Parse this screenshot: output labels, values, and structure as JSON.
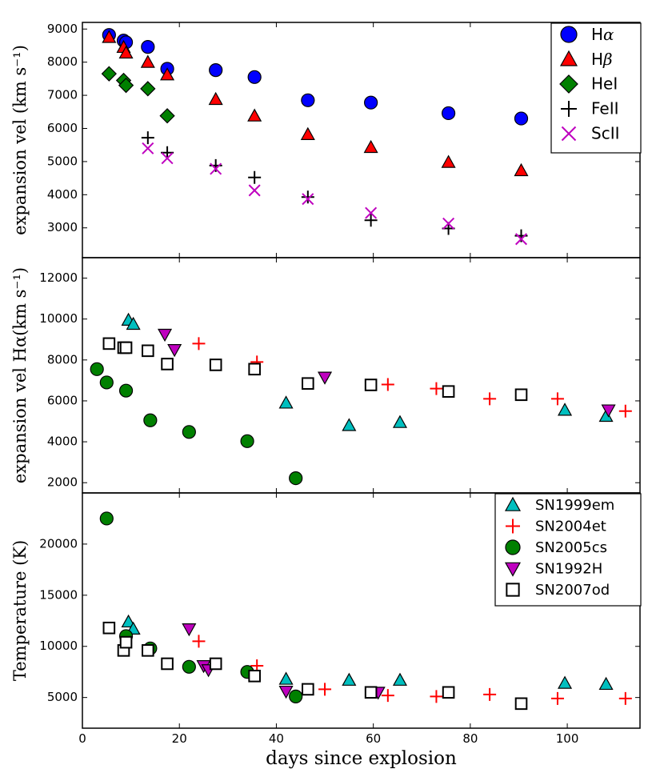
{
  "chart_data": [
    {
      "type": "scatter",
      "panel": "top",
      "xlim": [
        0,
        115
      ],
      "ylim": [
        2100,
        9200
      ],
      "ylabel": "expansion vel (km s⁻¹)",
      "yticks": [
        3000,
        4000,
        5000,
        6000,
        7000,
        8000,
        9000
      ],
      "legend_position": "top-right",
      "series": [
        {
          "name": "Hα",
          "marker": "circle",
          "color": "#0000ff",
          "points": [
            [
              5.5,
              8820
            ],
            [
              8.5,
              8650
            ],
            [
              9.0,
              8600
            ],
            [
              13.5,
              8460
            ],
            [
              17.5,
              7800
            ],
            [
              27.5,
              7760
            ],
            [
              35.5,
              7550
            ],
            [
              46.5,
              6850
            ],
            [
              59.5,
              6780
            ],
            [
              75.5,
              6460
            ],
            [
              90.5,
              6300
            ]
          ]
        },
        {
          "name": "Hβ",
          "marker": "triangle-up",
          "color": "#ff0000",
          "points": [
            [
              5.5,
              8750
            ],
            [
              8.5,
              8450
            ],
            [
              9.0,
              8280
            ],
            [
              13.5,
              8000
            ],
            [
              17.5,
              7620
            ],
            [
              27.5,
              6880
            ],
            [
              35.5,
              6380
            ],
            [
              46.5,
              5820
            ],
            [
              59.5,
              5430
            ],
            [
              75.5,
              4980
            ],
            [
              90.5,
              4730
            ]
          ]
        },
        {
          "name": "HeI",
          "marker": "diamond",
          "color": "#008000",
          "points": [
            [
              5.5,
              7650
            ],
            [
              8.5,
              7450
            ],
            [
              9.0,
              7300
            ],
            [
              13.5,
              7200
            ],
            [
              17.5,
              6380
            ]
          ]
        },
        {
          "name": "FeII",
          "marker": "plus",
          "color": "#000000",
          "points": [
            [
              13.5,
              5720
            ],
            [
              17.5,
              5270
            ],
            [
              27.5,
              4880
            ],
            [
              35.5,
              4520
            ],
            [
              46.5,
              3930
            ],
            [
              59.5,
              3230
            ],
            [
              75.5,
              2980
            ],
            [
              90.5,
              2760
            ]
          ]
        },
        {
          "name": "ScII",
          "marker": "x",
          "color": "#bf00bf",
          "points": [
            [
              13.5,
              5400
            ],
            [
              17.5,
              5100
            ],
            [
              27.5,
              4780
            ],
            [
              35.5,
              4130
            ],
            [
              46.5,
              3870
            ],
            [
              59.5,
              3450
            ],
            [
              75.5,
              3130
            ],
            [
              90.5,
              2660
            ]
          ]
        }
      ]
    },
    {
      "type": "scatter",
      "panel": "middle",
      "xlim": [
        0,
        115
      ],
      "ylim": [
        1500,
        13000
      ],
      "ylabel": "expansion vel Hα(km s⁻¹)",
      "yticks": [
        2000,
        4000,
        6000,
        8000,
        10000,
        12000
      ],
      "series": [
        {
          "name": "SN1999em",
          "marker": "triangle-up",
          "color": "#00bfbf",
          "points": [
            [
              9.5,
              9950
            ],
            [
              10.5,
              9750
            ],
            [
              42,
              5900
            ],
            [
              55,
              4800
            ],
            [
              65.5,
              4950
            ],
            [
              99.5,
              5550
            ],
            [
              108,
              5250
            ]
          ]
        },
        {
          "name": "SN2004et",
          "marker": "plus",
          "color": "#ff0000",
          "points": [
            [
              24,
              8800
            ],
            [
              36,
              7900
            ],
            [
              63,
              6800
            ],
            [
              73,
              6600
            ],
            [
              84,
              6100
            ],
            [
              98,
              6100
            ],
            [
              112,
              5500
            ]
          ]
        },
        {
          "name": "SN2005cs",
          "marker": "circle",
          "color": "#008000",
          "points": [
            [
              3,
              7550
            ],
            [
              5,
              6900
            ],
            [
              9,
              6500
            ],
            [
              14,
              5050
            ],
            [
              22,
              4480
            ],
            [
              34,
              4030
            ],
            [
              44,
              2220
            ]
          ]
        },
        {
          "name": "SN1992H",
          "marker": "triangle-down",
          "color": "#bf00bf",
          "points": [
            [
              17,
              9250
            ],
            [
              19,
              8500
            ],
            [
              50,
              7150
            ],
            [
              108.5,
              5550
            ]
          ]
        },
        {
          "name": "SN2007od",
          "marker": "square",
          "color": "#000000",
          "points": [
            [
              5.5,
              8800
            ],
            [
              8.5,
              8600
            ],
            [
              9.0,
              8600
            ],
            [
              13.5,
              8450
            ],
            [
              17.5,
              7800
            ],
            [
              27.5,
              7760
            ],
            [
              35.5,
              7550
            ],
            [
              46.5,
              6850
            ],
            [
              59.5,
              6780
            ],
            [
              75.5,
              6460
            ],
            [
              90.5,
              6300
            ]
          ]
        }
      ]
    },
    {
      "type": "scatter",
      "panel": "bottom",
      "xlim": [
        0,
        115
      ],
      "ylim": [
        2000,
        25000
      ],
      "xlabel": "days since explosion",
      "ylabel": "Temperature (K)",
      "xticks": [
        0,
        20,
        40,
        60,
        80,
        100
      ],
      "yticks": [
        5000,
        10000,
        15000,
        20000
      ],
      "legend_position": "top-right",
      "series": [
        {
          "name": "SN1999em",
          "marker": "triangle-up",
          "color": "#00bfbf",
          "points": [
            [
              9.5,
              12400
            ],
            [
              10.5,
              11700
            ],
            [
              42,
              6800
            ],
            [
              55,
              6700
            ],
            [
              65.5,
              6700
            ],
            [
              99.5,
              6400
            ],
            [
              108,
              6300
            ]
          ]
        },
        {
          "name": "SN2004et",
          "marker": "plus",
          "color": "#ff0000",
          "points": [
            [
              24,
              10500
            ],
            [
              36,
              8100
            ],
            [
              50,
              5800
            ],
            [
              63,
              5200
            ],
            [
              73,
              5100
            ],
            [
              84,
              5300
            ],
            [
              98,
              4900
            ],
            [
              112,
              4900
            ]
          ]
        },
        {
          "name": "SN2005cs",
          "marker": "circle",
          "color": "#008000",
          "points": [
            [
              5,
              22500
            ],
            [
              9,
              11000
            ],
            [
              14,
              9800
            ],
            [
              22,
              8000
            ],
            [
              34,
              7500
            ],
            [
              44,
              5100
            ]
          ]
        },
        {
          "name": "SN1992H",
          "marker": "triangle-down",
          "color": "#bf00bf",
          "points": [
            [
              22,
              11700
            ],
            [
              25,
              8100
            ],
            [
              26,
              7700
            ],
            [
              42,
              5600
            ],
            [
              61,
              5500
            ]
          ]
        },
        {
          "name": "SN2007od",
          "marker": "square",
          "color": "#000000",
          "points": [
            [
              5.5,
              11800
            ],
            [
              8.5,
              9600
            ],
            [
              9.0,
              10400
            ],
            [
              13.5,
              9600
            ],
            [
              17.5,
              8300
            ],
            [
              27.5,
              8300
            ],
            [
              35.5,
              7100
            ],
            [
              46.5,
              5800
            ],
            [
              59.5,
              5500
            ],
            [
              75.5,
              5500
            ],
            [
              90.5,
              4400
            ]
          ]
        }
      ]
    }
  ]
}
